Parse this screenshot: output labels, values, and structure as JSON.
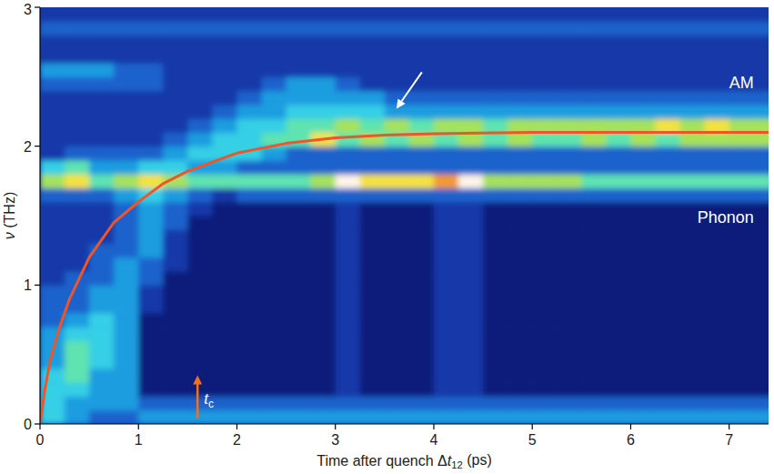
{
  "chart_data": {
    "type": "heatmap",
    "xlabel": [
      {
        "text": "Time after quench Δ"
      },
      {
        "text": "t",
        "style": "italic"
      },
      {
        "text": "12",
        "style": "sub"
      },
      {
        "text": " (ps)"
      }
    ],
    "ylabel": [
      {
        "text": "ν",
        "style": "italic"
      },
      {
        "text": " (THz)"
      }
    ],
    "xlim": [
      0,
      7.4
    ],
    "ylim": [
      0,
      3
    ],
    "xticks": [
      0,
      1,
      2,
      3,
      4,
      5,
      6,
      7
    ],
    "yticks": [
      0,
      1,
      2,
      3
    ],
    "grid": false,
    "zlim": [
      0,
      9
    ],
    "x_bins": [
      0,
      0.25,
      0.5,
      0.75,
      1,
      1.25,
      1.5,
      1.75,
      2,
      2.25,
      2.5,
      2.75,
      3,
      3.25,
      3.5,
      3.75,
      4,
      4.25,
      4.5,
      4.75,
      5,
      5.25,
      5.5,
      5.75,
      6,
      6.25,
      6.5,
      6.75,
      7,
      7.25,
      7.5
    ],
    "y_bins": [
      0,
      0.1,
      0.2,
      0.3,
      0.4,
      0.5,
      0.6,
      0.7,
      0.8,
      0.9,
      1,
      1.1,
      1.2,
      1.3,
      1.4,
      1.5,
      1.6,
      1.7,
      1.8,
      1.9,
      2,
      2.1,
      2.2,
      2.3,
      2.4,
      2.5,
      2.6,
      2.7,
      2.8,
      2.9,
      3
    ],
    "cells": [
      [
        4,
        3,
        2,
        2,
        3,
        3,
        3,
        3,
        3,
        3,
        3,
        3,
        3,
        3,
        3,
        3,
        3,
        3,
        3,
        3,
        3,
        3,
        3,
        3,
        3,
        3,
        3,
        3,
        3,
        3
      ],
      [
        4,
        3,
        3,
        3,
        2,
        2,
        2,
        2,
        2,
        2,
        2,
        2,
        2,
        2,
        2,
        2,
        2,
        2,
        2,
        2,
        2,
        2,
        2,
        2,
        2,
        2,
        2,
        2,
        2,
        2
      ],
      [
        4,
        4,
        3,
        3,
        0,
        0,
        0,
        0,
        0,
        0,
        0,
        0,
        1,
        0,
        0,
        0,
        1,
        1,
        0,
        0,
        0,
        0,
        0,
        0,
        0,
        0,
        0,
        0,
        0,
        0
      ],
      [
        4,
        5,
        3,
        3,
        0,
        0,
        0,
        0,
        0,
        0,
        0,
        0,
        1,
        0,
        0,
        0,
        1,
        1,
        0,
        0,
        0,
        0,
        0,
        0,
        0,
        0,
        0,
        0,
        0,
        0
      ],
      [
        3,
        5,
        4,
        3,
        0,
        0,
        0,
        0,
        0,
        0,
        0,
        0,
        1,
        0,
        0,
        0,
        1,
        1,
        0,
        0,
        0,
        0,
        0,
        0,
        0,
        0,
        0,
        0,
        0,
        0
      ],
      [
        3,
        5,
        4,
        3,
        0,
        0,
        0,
        0,
        0,
        0,
        0,
        0,
        1,
        0,
        0,
        0,
        1,
        1,
        0,
        0,
        0,
        0,
        0,
        0,
        0,
        0,
        0,
        0,
        0,
        0
      ],
      [
        3,
        4,
        4,
        3,
        0,
        0,
        0,
        0,
        0,
        0,
        0,
        0,
        1,
        0,
        0,
        0,
        1,
        1,
        0,
        0,
        0,
        0,
        0,
        0,
        0,
        0,
        0,
        0,
        0,
        0
      ],
      [
        2,
        3,
        4,
        3,
        0,
        0,
        0,
        0,
        0,
        0,
        0,
        0,
        1,
        0,
        0,
        0,
        1,
        1,
        0,
        0,
        0,
        0,
        0,
        0,
        0,
        0,
        0,
        0,
        0,
        0
      ],
      [
        2,
        2,
        3,
        3,
        1,
        0,
        0,
        0,
        0,
        0,
        0,
        0,
        1,
        0,
        0,
        0,
        1,
        1,
        0,
        0,
        0,
        0,
        0,
        0,
        0,
        0,
        0,
        0,
        0,
        0
      ],
      [
        2,
        2,
        3,
        3,
        1,
        0,
        0,
        0,
        0,
        0,
        0,
        0,
        1,
        0,
        0,
        0,
        1,
        1,
        0,
        0,
        0,
        0,
        0,
        0,
        0,
        0,
        0,
        0,
        0,
        0
      ],
      [
        1,
        2,
        2,
        3,
        2,
        0,
        0,
        0,
        0,
        0,
        0,
        0,
        1,
        0,
        0,
        0,
        1,
        1,
        0,
        0,
        0,
        0,
        0,
        0,
        0,
        0,
        0,
        0,
        0,
        0
      ],
      [
        1,
        1,
        2,
        3,
        2,
        1,
        0,
        0,
        0,
        0,
        0,
        0,
        1,
        0,
        0,
        0,
        1,
        1,
        0,
        0,
        0,
        0,
        0,
        0,
        0,
        0,
        0,
        0,
        0,
        0
      ],
      [
        1,
        1,
        2,
        2,
        3,
        1,
        0,
        0,
        0,
        0,
        0,
        0,
        1,
        0,
        0,
        0,
        1,
        1,
        0,
        0,
        0,
        0,
        0,
        0,
        0,
        0,
        0,
        0,
        0,
        0
      ],
      [
        1,
        1,
        1,
        2,
        3,
        1,
        0,
        0,
        0,
        0,
        0,
        0,
        1,
        0,
        0,
        0,
        1,
        1,
        0,
        0,
        0,
        0,
        0,
        0,
        0,
        0,
        0,
        0,
        0,
        0
      ],
      [
        1,
        1,
        1,
        2,
        3,
        2,
        0,
        0,
        0,
        0,
        0,
        0,
        1,
        0,
        0,
        0,
        1,
        1,
        0,
        0,
        0,
        0,
        0,
        0,
        0,
        0,
        0,
        0,
        0,
        0
      ],
      [
        1,
        1,
        1,
        2,
        3,
        2,
        1,
        0,
        0,
        0,
        0,
        0,
        1,
        0,
        0,
        0,
        1,
        1,
        0,
        0,
        0,
        0,
        0,
        0,
        0,
        0,
        0,
        0,
        0,
        0
      ],
      [
        2,
        2,
        2,
        3,
        4,
        3,
        2,
        1,
        2,
        2,
        2,
        2,
        2,
        2,
        2,
        2,
        2,
        2,
        2,
        2,
        2,
        2,
        2,
        2,
        2,
        2,
        2,
        2,
        2,
        2
      ],
      [
        6,
        7,
        5,
        6,
        7,
        6,
        5,
        5,
        5,
        5,
        5,
        6,
        9,
        7,
        7,
        7,
        8,
        9,
        6,
        6,
        6,
        6,
        5,
        5,
        5,
        5,
        5,
        5,
        5,
        5
      ],
      [
        4,
        5,
        3,
        3,
        4,
        4,
        3,
        3,
        2,
        2,
        2,
        2,
        2,
        2,
        2,
        2,
        2,
        2,
        2,
        2,
        2,
        2,
        2,
        2,
        2,
        2,
        2,
        2,
        2,
        2
      ],
      [
        1,
        2,
        2,
        2,
        2,
        3,
        4,
        4,
        4,
        3,
        2,
        2,
        2,
        2,
        2,
        2,
        2,
        2,
        2,
        2,
        2,
        2,
        2,
        2,
        2,
        2,
        2,
        2,
        2,
        2
      ],
      [
        1,
        1,
        1,
        1,
        1,
        2,
        3,
        4,
        4,
        5,
        5,
        7,
        5,
        6,
        5,
        6,
        5,
        6,
        5,
        6,
        5,
        5,
        6,
        5,
        6,
        5,
        6,
        6,
        6,
        6
      ],
      [
        1,
        1,
        1,
        1,
        1,
        1,
        2,
        3,
        4,
        4,
        5,
        5,
        6,
        5,
        6,
        5,
        6,
        6,
        5,
        6,
        6,
        6,
        6,
        6,
        6,
        7,
        6,
        7,
        6,
        6
      ],
      [
        1,
        1,
        1,
        1,
        1,
        1,
        1,
        2,
        3,
        3,
        4,
        4,
        4,
        4,
        3,
        3,
        3,
        3,
        3,
        3,
        3,
        3,
        3,
        3,
        3,
        3,
        3,
        3,
        3,
        3
      ],
      [
        1,
        1,
        1,
        1,
        1,
        1,
        1,
        1,
        2,
        3,
        3,
        3,
        3,
        3,
        2,
        2,
        2,
        2,
        2,
        2,
        2,
        2,
        2,
        2,
        2,
        2,
        2,
        2,
        2,
        2
      ],
      [
        2,
        2,
        2,
        2,
        2,
        1,
        1,
        1,
        1,
        2,
        3,
        3,
        2,
        1,
        1,
        1,
        1,
        1,
        1,
        1,
        1,
        1,
        1,
        1,
        1,
        1,
        1,
        1,
        1,
        1
      ],
      [
        3,
        3,
        3,
        2,
        2,
        1,
        1,
        1,
        1,
        1,
        1,
        1,
        1,
        1,
        1,
        1,
        1,
        1,
        1,
        1,
        1,
        1,
        1,
        1,
        1,
        1,
        1,
        1,
        1,
        1
      ],
      [
        1,
        1,
        1,
        1,
        1,
        1,
        1,
        1,
        1,
        1,
        1,
        1,
        1,
        1,
        1,
        1,
        1,
        1,
        1,
        1,
        1,
        1,
        1,
        1,
        1,
        1,
        1,
        1,
        1,
        1
      ],
      [
        1,
        1,
        1,
        1,
        1,
        1,
        1,
        1,
        1,
        1,
        1,
        1,
        1,
        1,
        1,
        1,
        1,
        1,
        1,
        1,
        1,
        1,
        1,
        1,
        1,
        1,
        1,
        1,
        1,
        1
      ],
      [
        2,
        2,
        2,
        2,
        2,
        2,
        2,
        2,
        2,
        2,
        2,
        2,
        2,
        2,
        2,
        2,
        2,
        2,
        2,
        2,
        2,
        2,
        2,
        2,
        2,
        2,
        2,
        2,
        2,
        2
      ],
      [
        1,
        1,
        1,
        1,
        1,
        1,
        1,
        1,
        1,
        1,
        1,
        1,
        1,
        1,
        1,
        1,
        1,
        1,
        1,
        1,
        1,
        1,
        1,
        1,
        1,
        1,
        1,
        1,
        1,
        1
      ]
    ],
    "series": [
      {
        "type": "line",
        "color": "#f0552a",
        "x": [
          0,
          0.05,
          0.1,
          0.2,
          0.3,
          0.5,
          0.75,
          1,
          1.25,
          1.5,
          2,
          2.5,
          3,
          3.5,
          4,
          5,
          6,
          7.4
        ],
        "values": [
          0,
          0.25,
          0.45,
          0.7,
          0.9,
          1.2,
          1.45,
          1.6,
          1.73,
          1.82,
          1.95,
          2.02,
          2.06,
          2.08,
          2.09,
          2.1,
          2.1,
          2.1
        ]
      }
    ],
    "annotations": [
      {
        "text": "AM",
        "x": 7.25,
        "y": 2.42,
        "color": "#ffffff"
      },
      {
        "text": "Phonon",
        "x": 7.25,
        "y": 1.45,
        "color": "#ffffff"
      }
    ],
    "arrows": [
      {
        "x": 1.6,
        "y": 0.35,
        "color": "#f07020",
        "parts": [
          {
            "text": "t",
            "style": "italic"
          },
          {
            "text": "c",
            "style": "sub"
          }
        ]
      },
      {
        "x": 3.62,
        "y": 2.27,
        "color": "#ffffff"
      }
    ]
  }
}
